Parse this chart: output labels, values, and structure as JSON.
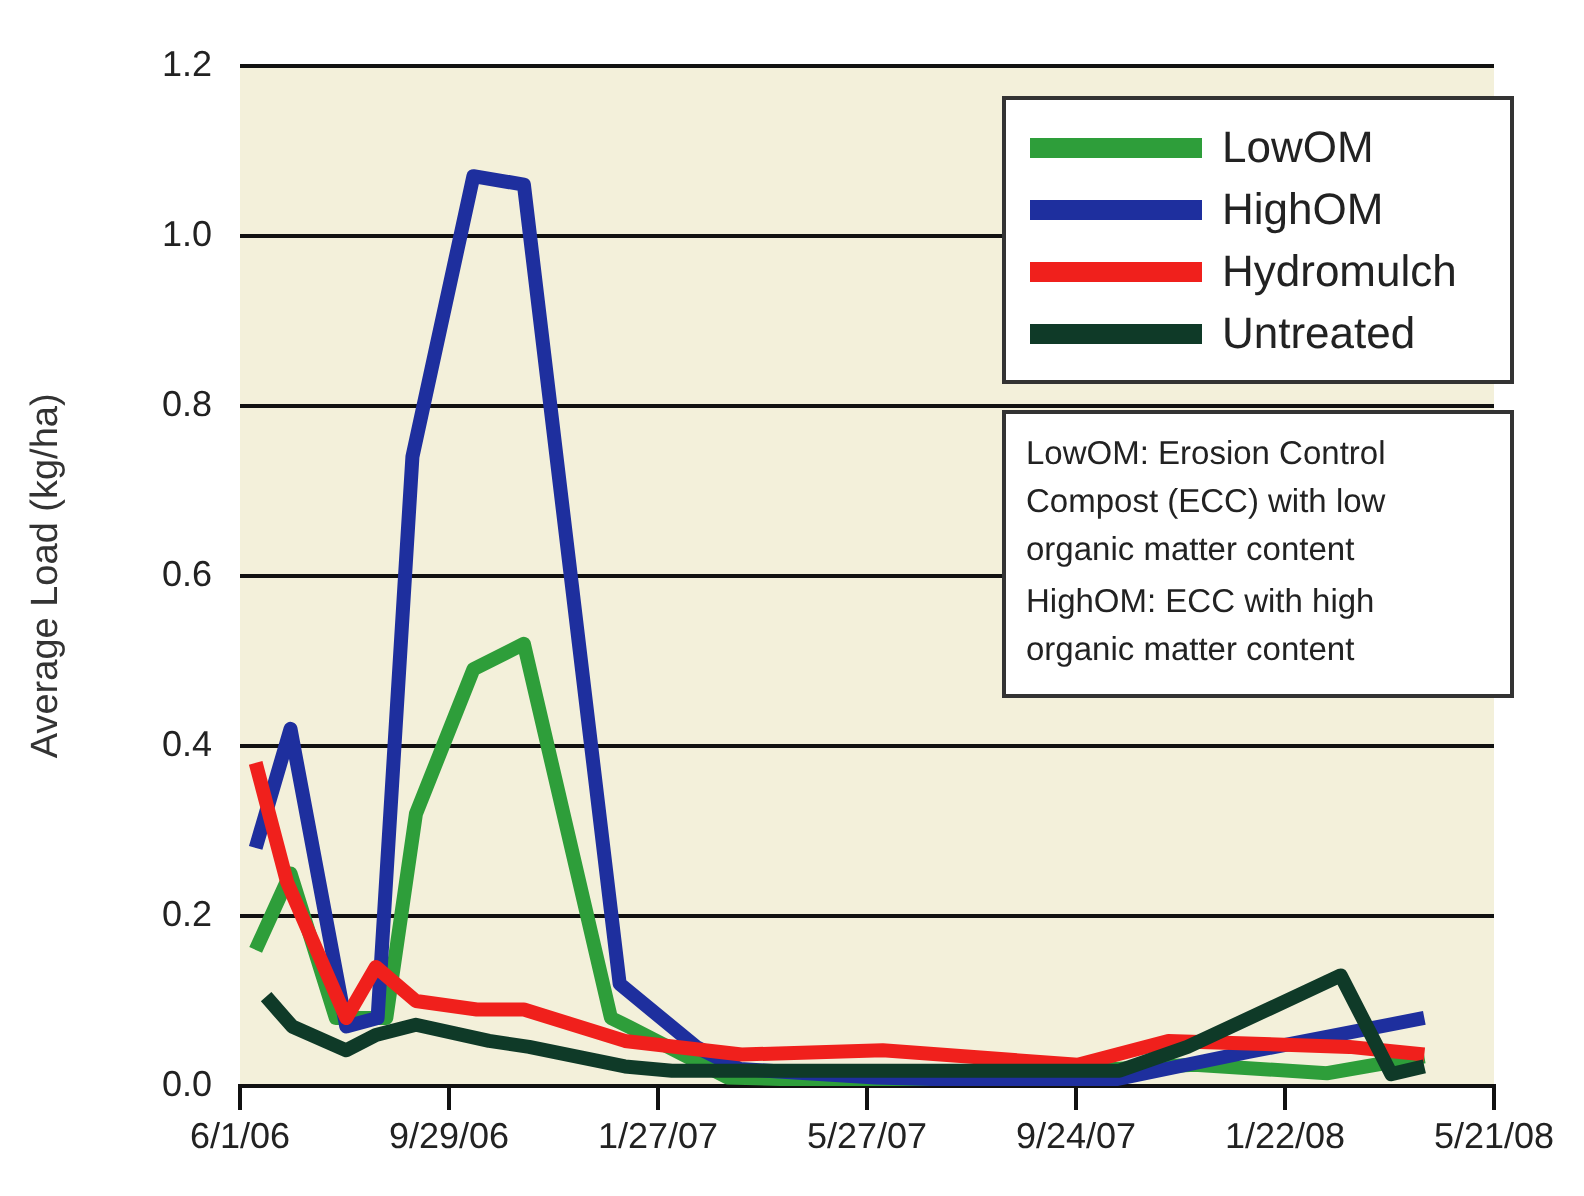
{
  "chart_data": {
    "type": "line",
    "ylabel": "Average Load (kg/ha)",
    "xlim": [
      "2006-06-01",
      "2008-05-21"
    ],
    "xticks": [
      {
        "value": "2006-06-01",
        "label": "6/1/06"
      },
      {
        "value": "2006-09-29",
        "label": "9/29/06"
      },
      {
        "value": "2007-01-27",
        "label": "1/27/07"
      },
      {
        "value": "2007-05-27",
        "label": "5/27/07"
      },
      {
        "value": "2007-09-24",
        "label": "9/24/07"
      },
      {
        "value": "2008-01-22",
        "label": "1/22/08"
      },
      {
        "value": "2008-05-21",
        "label": "5/21/08"
      }
    ],
    "ylim": [
      0,
      1.2
    ],
    "yticks": [
      {
        "value": 0,
        "label": "0.0"
      },
      {
        "value": 0.2,
        "label": "0.2"
      },
      {
        "value": 0.4,
        "label": "0.4"
      },
      {
        "value": 0.6,
        "label": "0.6"
      },
      {
        "value": 0.8,
        "label": "0.8"
      },
      {
        "value": 1.0,
        "label": "1.0"
      },
      {
        "value": 1.2,
        "label": "1.2"
      }
    ],
    "grid": "y",
    "legend": "top right",
    "marker": "none",
    "line_style": "solid",
    "series": [
      {
        "name": "LowOM",
        "color": "#2e9e3a",
        "x": [
          "2006-06-10",
          "2006-06-30",
          "2006-07-26",
          "2006-08-24",
          "2006-09-10",
          "2006-10-13",
          "2006-11-11",
          "2006-12-31",
          "2007-01-10",
          "2007-03-08",
          "2007-06-01",
          "2007-12-01",
          "2008-02-15",
          "2008-04-11"
        ],
        "values": [
          0.16,
          0.25,
          0.08,
          0.08,
          0.32,
          0.49,
          0.52,
          0.08,
          0.07,
          0.01,
          0.005,
          0.025,
          0.015,
          0.035
        ]
      },
      {
        "name": "HighOM",
        "color": "#1e2f9e",
        "x": [
          "2006-06-10",
          "2006-06-30",
          "2006-08-01",
          "2006-08-19",
          "2006-09-08",
          "2006-10-13",
          "2006-11-11",
          "2007-01-05",
          "2007-02-18",
          "2007-03-15",
          "2007-06-01",
          "2007-09-01",
          "2007-10-10",
          "2008-01-01",
          "2008-04-11"
        ],
        "values": [
          0.28,
          0.42,
          0.07,
          0.08,
          0.74,
          1.07,
          1.06,
          0.12,
          0.046,
          0.02,
          0.01,
          0.005,
          0.005,
          0.04,
          0.08
        ]
      },
      {
        "name": "Hydromulch",
        "color": "#f0201c",
        "x": [
          "2006-06-10",
          "2006-06-28",
          "2006-08-01",
          "2006-08-18",
          "2006-09-10",
          "2006-10-15",
          "2006-11-11",
          "2007-01-08",
          "2007-03-16",
          "2007-06-05",
          "2007-09-25",
          "2007-11-16",
          "2008-02-28",
          "2008-04-11"
        ],
        "values": [
          0.38,
          0.24,
          0.08,
          0.14,
          0.1,
          0.09,
          0.09,
          0.053,
          0.037,
          0.042,
          0.025,
          0.053,
          0.046,
          0.037
        ]
      },
      {
        "name": "Untreated",
        "color": "#0f3a28",
        "x": [
          "2006-06-16",
          "2006-07-01",
          "2006-08-01",
          "2006-08-18",
          "2006-09-10",
          "2006-10-22",
          "2006-11-14",
          "2007-01-08",
          "2007-02-04",
          "2007-10-19",
          "2007-11-27",
          "2008-02-23",
          "2008-03-23",
          "2008-04-11"
        ],
        "values": [
          0.105,
          0.07,
          0.042,
          0.06,
          0.072,
          0.053,
          0.046,
          0.023,
          0.018,
          0.018,
          0.046,
          0.13,
          0.014,
          0.023
        ]
      }
    ],
    "annotations": [
      "LowOM: Erosion Control Compost (ECC) with low organic matter content",
      "HighOM: ECC with high organic matter content"
    ]
  }
}
